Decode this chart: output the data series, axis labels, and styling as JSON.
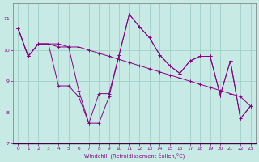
{
  "xlabel": "Windchill (Refroidissement éolien,°C)",
  "background_color": "#c8eae4",
  "grid_color": "#a0d0c8",
  "line_color": "#880088",
  "xlim": [
    -0.5,
    23.5
  ],
  "ylim": [
    7.0,
    11.5
  ],
  "yticks": [
    7,
    8,
    9,
    10,
    11
  ],
  "xticks": [
    0,
    1,
    2,
    3,
    4,
    5,
    6,
    7,
    8,
    9,
    10,
    11,
    12,
    13,
    14,
    15,
    16,
    17,
    18,
    19,
    20,
    21,
    22,
    23
  ],
  "curve1": [
    10.7,
    9.8,
    10.2,
    10.2,
    10.2,
    10.1,
    10.1,
    10.0,
    9.9,
    9.8,
    9.7,
    9.6,
    9.5,
    9.4,
    9.3,
    9.2,
    9.1,
    9.0,
    8.9,
    8.8,
    8.7,
    8.6,
    8.5,
    8.2
  ],
  "curve2": [
    10.7,
    9.8,
    10.2,
    10.2,
    10.1,
    10.1,
    8.7,
    7.65,
    7.65,
    8.5,
    9.85,
    11.15,
    10.75,
    10.4,
    9.85,
    9.5,
    9.25,
    9.65,
    9.8,
    9.8,
    8.55,
    9.65,
    7.8,
    8.2
  ],
  "curve3": [
    10.7,
    9.8,
    10.2,
    10.2,
    8.85,
    8.85,
    8.5,
    7.65,
    8.6,
    8.6,
    9.85,
    11.15,
    10.75,
    10.4,
    9.85,
    9.5,
    9.25,
    9.65,
    9.8,
    9.8,
    8.55,
    9.65,
    7.8,
    8.2
  ]
}
